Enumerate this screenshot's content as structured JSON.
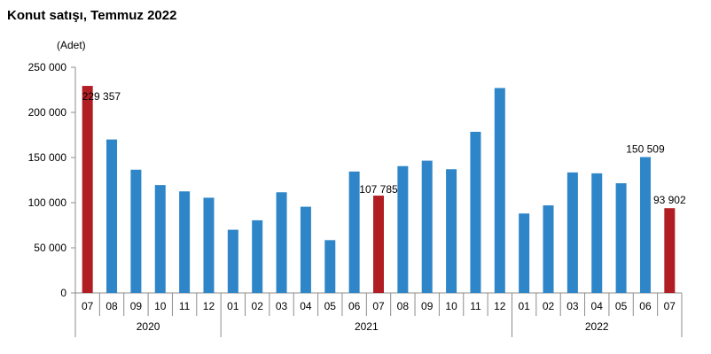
{
  "title": "Konut satışı, Temmuz 2022",
  "unit": "(Adet)",
  "chart_data": {
    "type": "bar",
    "title": "Konut satışı, Temmuz 2022",
    "ylabel": "(Adet)",
    "ylim": [
      0,
      250000
    ],
    "yticks": [
      "0",
      "50 000",
      "100 000",
      "150 000",
      "200 000",
      "250 000"
    ],
    "categories": [
      "07",
      "08",
      "09",
      "10",
      "11",
      "12",
      "01",
      "02",
      "03",
      "04",
      "05",
      "06",
      "07",
      "08",
      "09",
      "10",
      "11",
      "12",
      "01",
      "02",
      "03",
      "04",
      "05",
      "06",
      "07"
    ],
    "years": [
      {
        "label": "2020",
        "from": 0,
        "to": 5
      },
      {
        "label": "2021",
        "from": 6,
        "to": 17
      },
      {
        "label": "2022",
        "from": 18,
        "to": 24
      }
    ],
    "values": [
      229357,
      170000,
      136500,
      119500,
      112500,
      105500,
      70000,
      80500,
      111500,
      95500,
      58500,
      134500,
      107785,
      140500,
      146500,
      137000,
      178500,
      227000,
      88000,
      97000,
      133500,
      132500,
      121500,
      150509,
      93902
    ],
    "highlight": [
      0,
      12,
      24
    ],
    "data_labels": {
      "0": "229 357",
      "12": "107 785",
      "23": "150 509",
      "24": "93 902"
    },
    "colors": {
      "normal": "#2E86C8",
      "highlight": "#B01E24",
      "axis": "#8C8C8C"
    },
    "grid": false
  }
}
